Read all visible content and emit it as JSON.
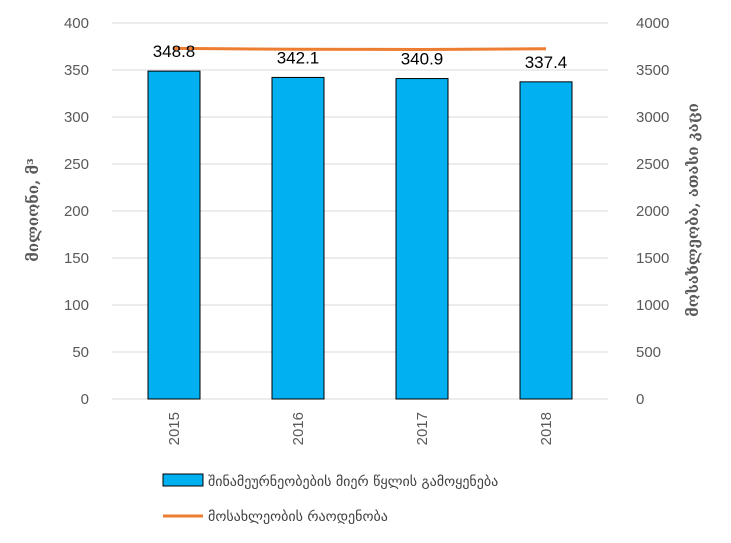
{
  "chart_data": {
    "type": "bar",
    "categories": [
      "2015",
      "2016",
      "2017",
      "2018"
    ],
    "series": [
      {
        "name": "შინამეურნეობების მიერ წყლის გამოყენება",
        "type": "bar",
        "axis": "left",
        "values": [
          348.8,
          342.1,
          340.9,
          337.4
        ],
        "color": "#00B0F0"
      },
      {
        "name": "მოსახლეობის რაოდენობა",
        "type": "line",
        "axis": "right",
        "values": [
          3729.5,
          3720.4,
          3718.2,
          3726.4
        ],
        "color": "#ED7D31"
      }
    ],
    "data_labels": [
      "348.8",
      "342.1",
      "340.9",
      "337.4"
    ],
    "ylabel_left": "მილიონი, მ³",
    "ylabel_right": "მოსახლეობა, ათასი კაცი",
    "ylim_left": [
      0,
      400
    ],
    "ylim_right": [
      0,
      4000
    ],
    "yticks_left": [
      "0",
      "50",
      "100",
      "150",
      "200",
      "250",
      "300",
      "350",
      "400"
    ],
    "yticks_right": [
      "0",
      "500",
      "1000",
      "1500",
      "2000",
      "2500",
      "3000",
      "3500",
      "4000"
    ],
    "grid": true,
    "legend_position": "bottom"
  }
}
